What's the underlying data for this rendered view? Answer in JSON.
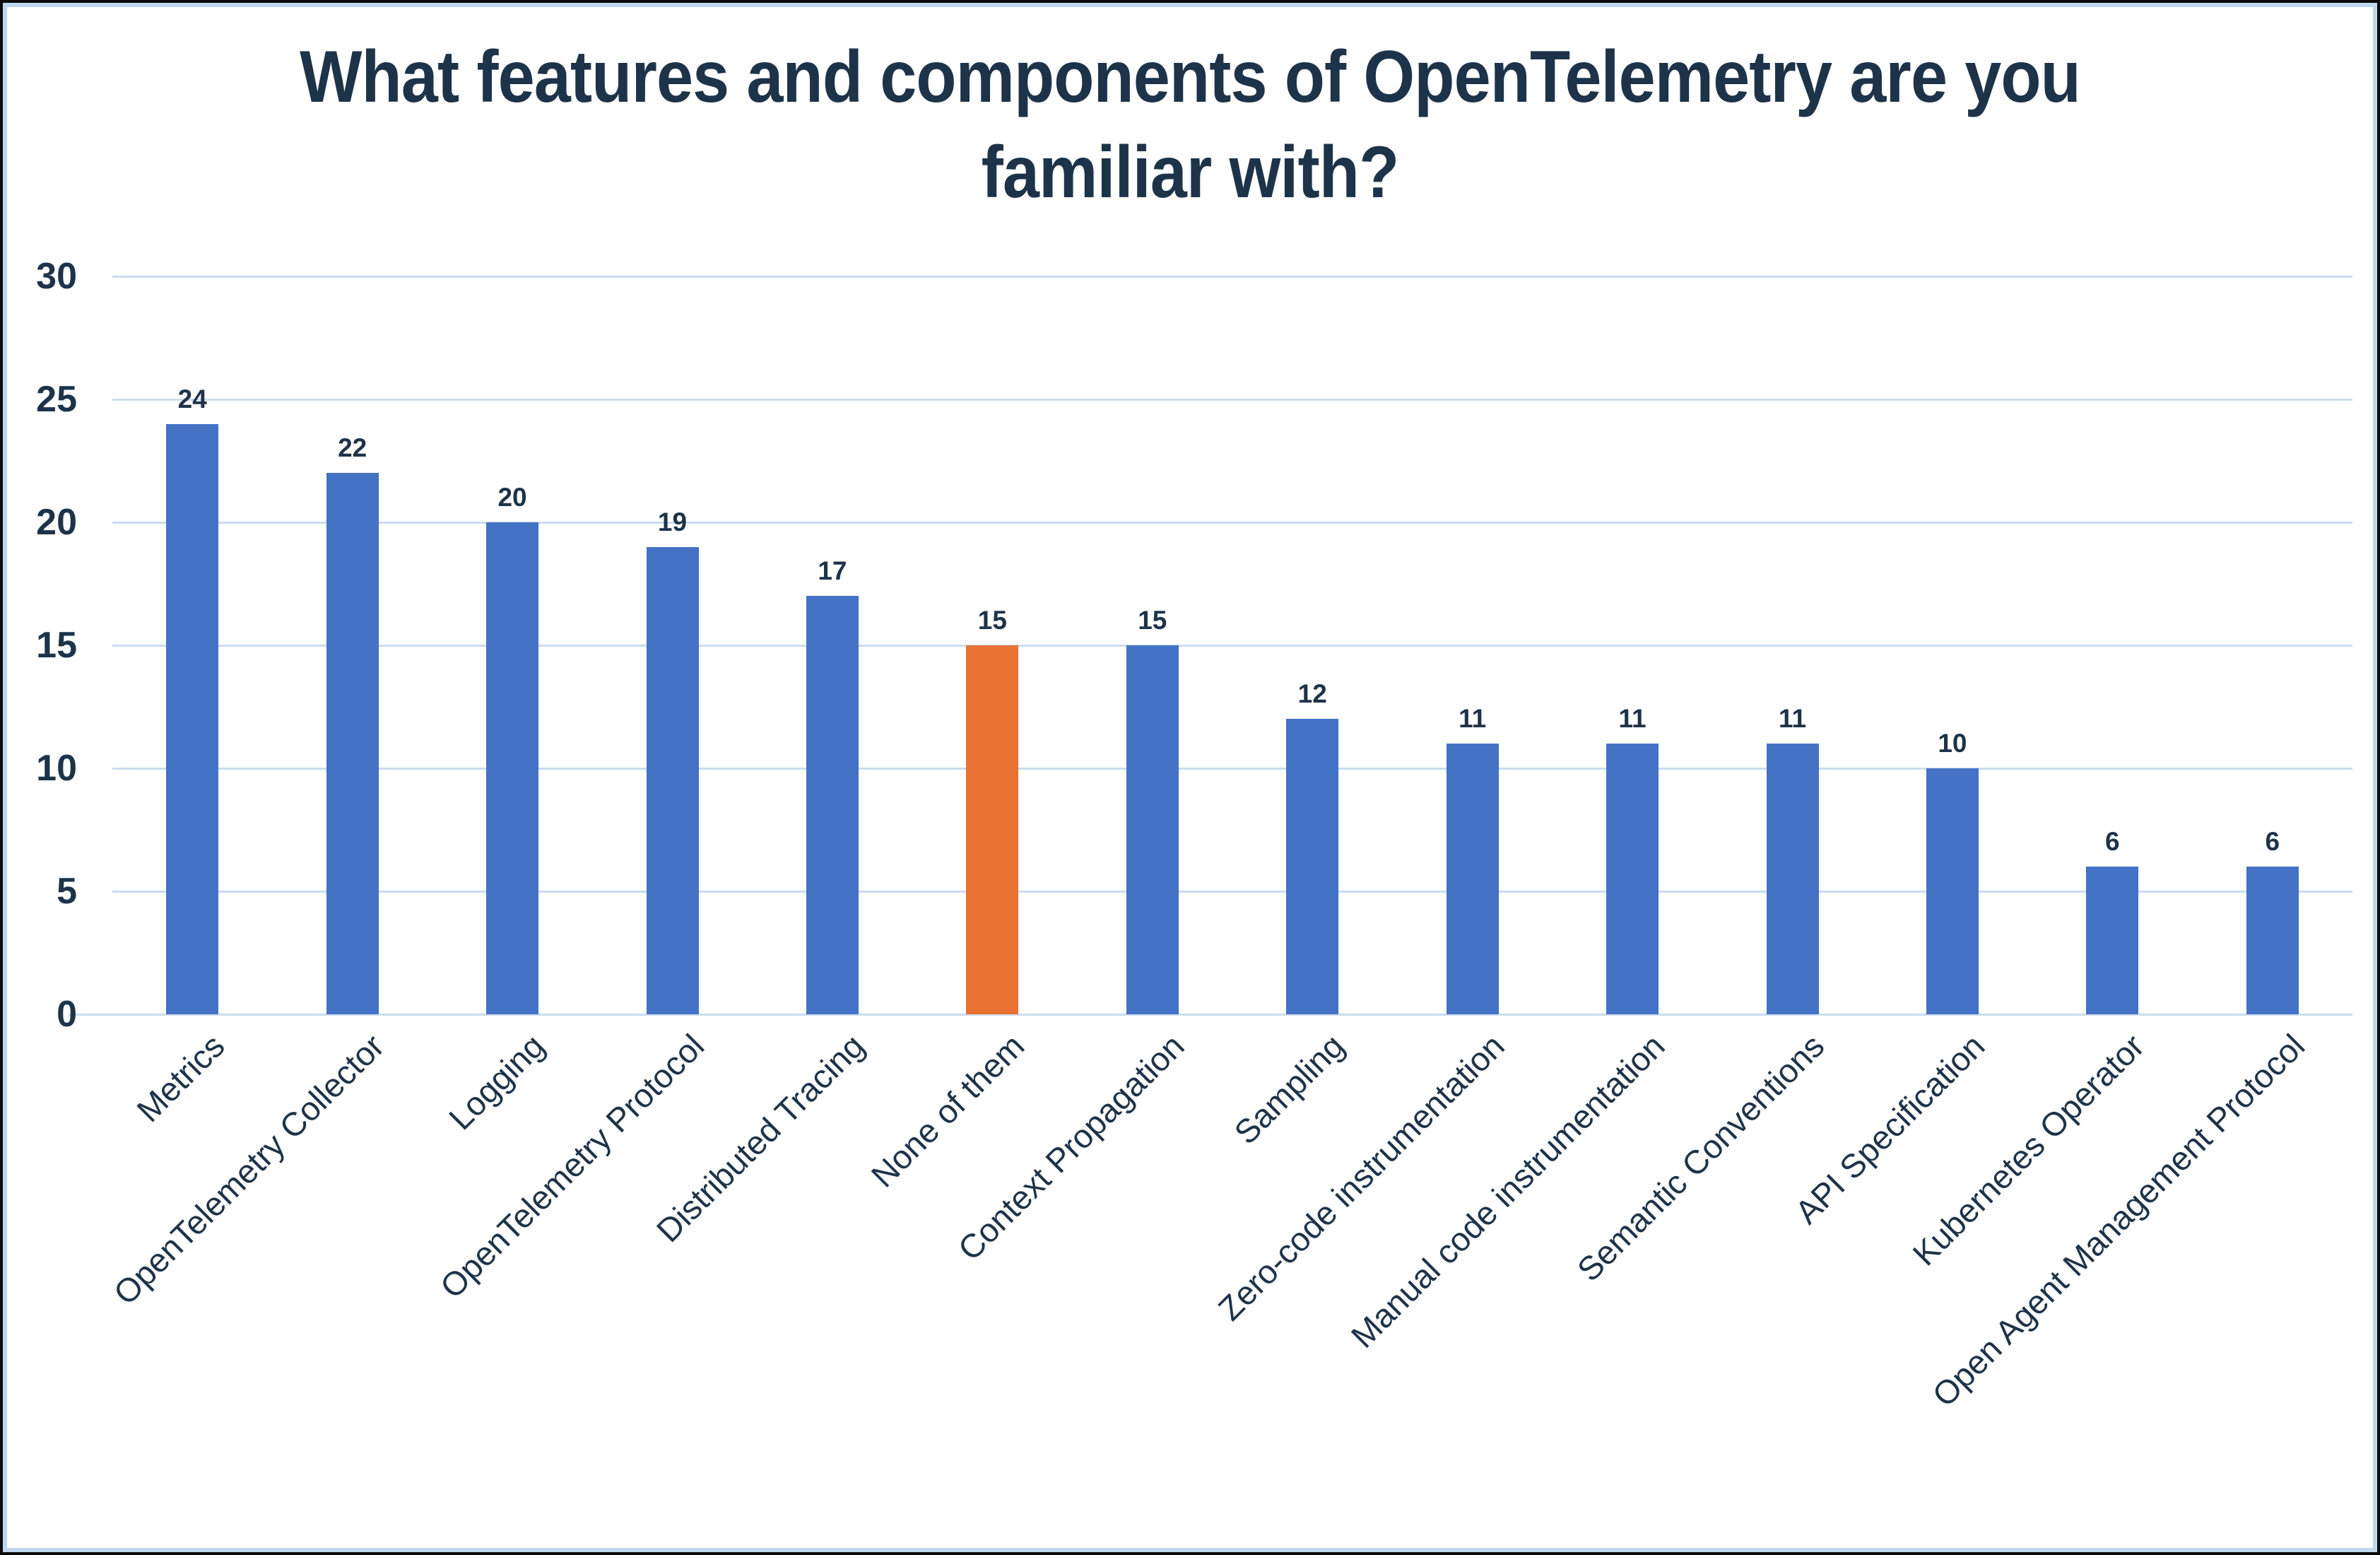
{
  "chart_data": {
    "type": "bar",
    "title": "What features and components of OpenTelemetry are you familiar with?",
    "title_lines": [
      "What features and components of OpenTelemetry are you",
      "familiar with?"
    ],
    "categories": [
      "Metrics",
      "OpenTelemetry Collector",
      "Logging",
      "OpenTelemetry Protocol",
      "Distributed Tracing",
      "None of them",
      "Context Propagation",
      "Sampling",
      "Zero-code instrumentation",
      "Manual code instrumentation",
      "Semantic Conventions",
      "API Specification",
      "Kubernetes Operator",
      "Open Agent Management Protocol"
    ],
    "values": [
      24,
      22,
      20,
      19,
      17,
      15,
      15,
      12,
      11,
      11,
      11,
      10,
      6,
      6
    ],
    "highlight_index": 5,
    "highlight_category": "None of them",
    "xlabel": "",
    "ylabel": "",
    "ylim": [
      0,
      30
    ],
    "yticks": [
      0,
      5,
      10,
      15,
      20,
      25,
      30
    ],
    "grid": "horizontal",
    "legend": "none",
    "bar_value_labels_shown": true
  },
  "colors": {
    "bar": "#4472C4",
    "bar_highlight": "#E97132",
    "gridline": "#CBDCEE",
    "axis_text": "#1D3349",
    "title_text": "#1D3349",
    "value_label_text": "#1D3349",
    "chart_border": "#BDD7EE",
    "outer_border": "#0B0B0B",
    "background": "#FFFFFF"
  }
}
